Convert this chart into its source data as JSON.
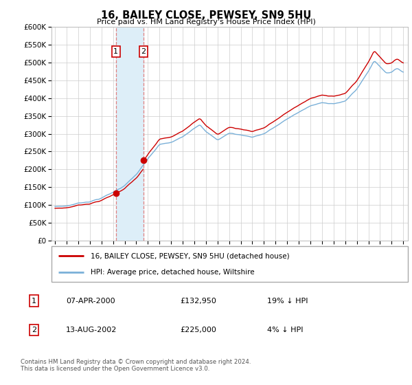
{
  "title": "16, BAILEY CLOSE, PEWSEY, SN9 5HU",
  "subtitle": "Price paid vs. HM Land Registry's House Price Index (HPI)",
  "hpi_color": "#7ab0d8",
  "property_color": "#cc0000",
  "highlight_color": "#ddeef8",
  "dashed_line_color": "#e08080",
  "ylim": [
    0,
    600000
  ],
  "sale_year1": 2000.25,
  "sale_year2": 2002.625,
  "sale_value1": 132950,
  "sale_value2": 225000,
  "sale_labels": [
    "1",
    "2"
  ],
  "legend_entries": [
    "16, BAILEY CLOSE, PEWSEY, SN9 5HU (detached house)",
    "HPI: Average price, detached house, Wiltshire"
  ],
  "table_data": [
    [
      "1",
      "07-APR-2000",
      "£132,950",
      "19% ↓ HPI"
    ],
    [
      "2",
      "13-AUG-2002",
      "£225,000",
      "4% ↓ HPI"
    ]
  ],
  "footnote": "Contains HM Land Registry data © Crown copyright and database right 2024.\nThis data is licensed under the Open Government Licence v3.0."
}
